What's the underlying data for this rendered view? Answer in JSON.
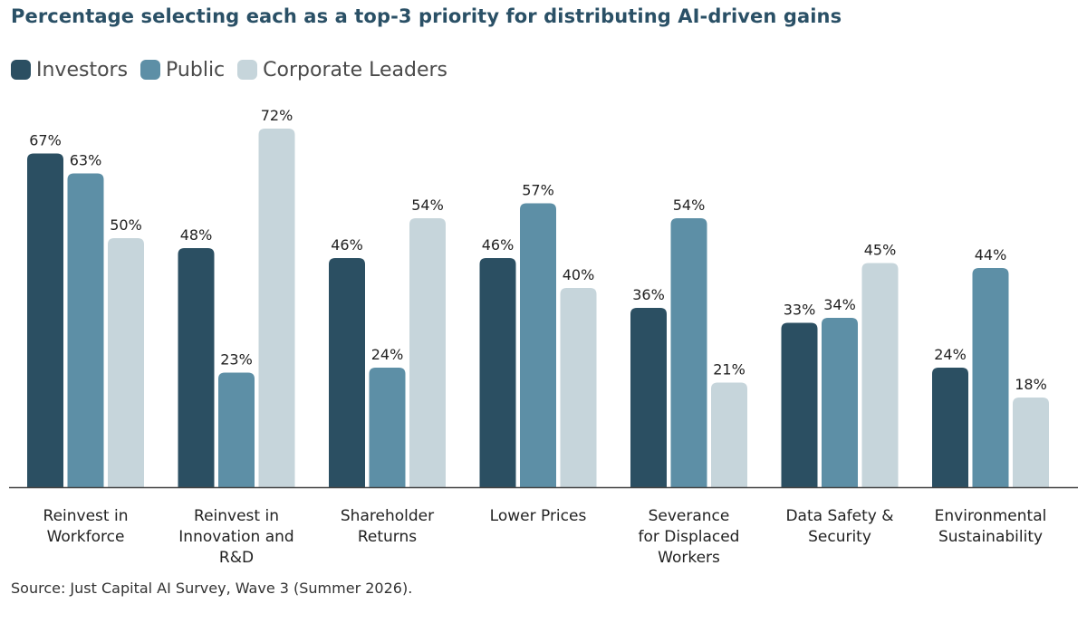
{
  "title": "Percentage selecting each as a top-3 priority for distributing AI-driven gains",
  "source": "Source: Just Capital AI Survey, Wave 3 (Summer 2026).",
  "chart_data": {
    "type": "bar",
    "title": "Percentage selecting each as a top-3 priority for distributing AI-driven gains",
    "categories": [
      [
        "Reinvest in",
        "Workforce"
      ],
      [
        "Reinvest in",
        "Innovation and",
        "R&D"
      ],
      [
        "Shareholder",
        "Returns"
      ],
      [
        "Lower Prices"
      ],
      [
        "Severance",
        "for Displaced",
        "Workers"
      ],
      [
        "Data Safety &",
        "Security"
      ],
      [
        "Environmental",
        "Sustainability"
      ]
    ],
    "series": [
      {
        "name": "Investors",
        "color": "#2b4f62",
        "values": [
          67,
          48,
          46,
          46,
          36,
          33,
          24
        ]
      },
      {
        "name": "Public",
        "color": "#5d8fa6",
        "values": [
          63,
          23,
          24,
          57,
          54,
          34,
          44
        ]
      },
      {
        "name": "Corporate Leaders",
        "color": "#c6d5db",
        "values": [
          50,
          72,
          54,
          40,
          21,
          45,
          18
        ]
      }
    ],
    "value_suffix": "%",
    "ylim": [
      0,
      72
    ],
    "grid": false,
    "legend": "top-left"
  }
}
